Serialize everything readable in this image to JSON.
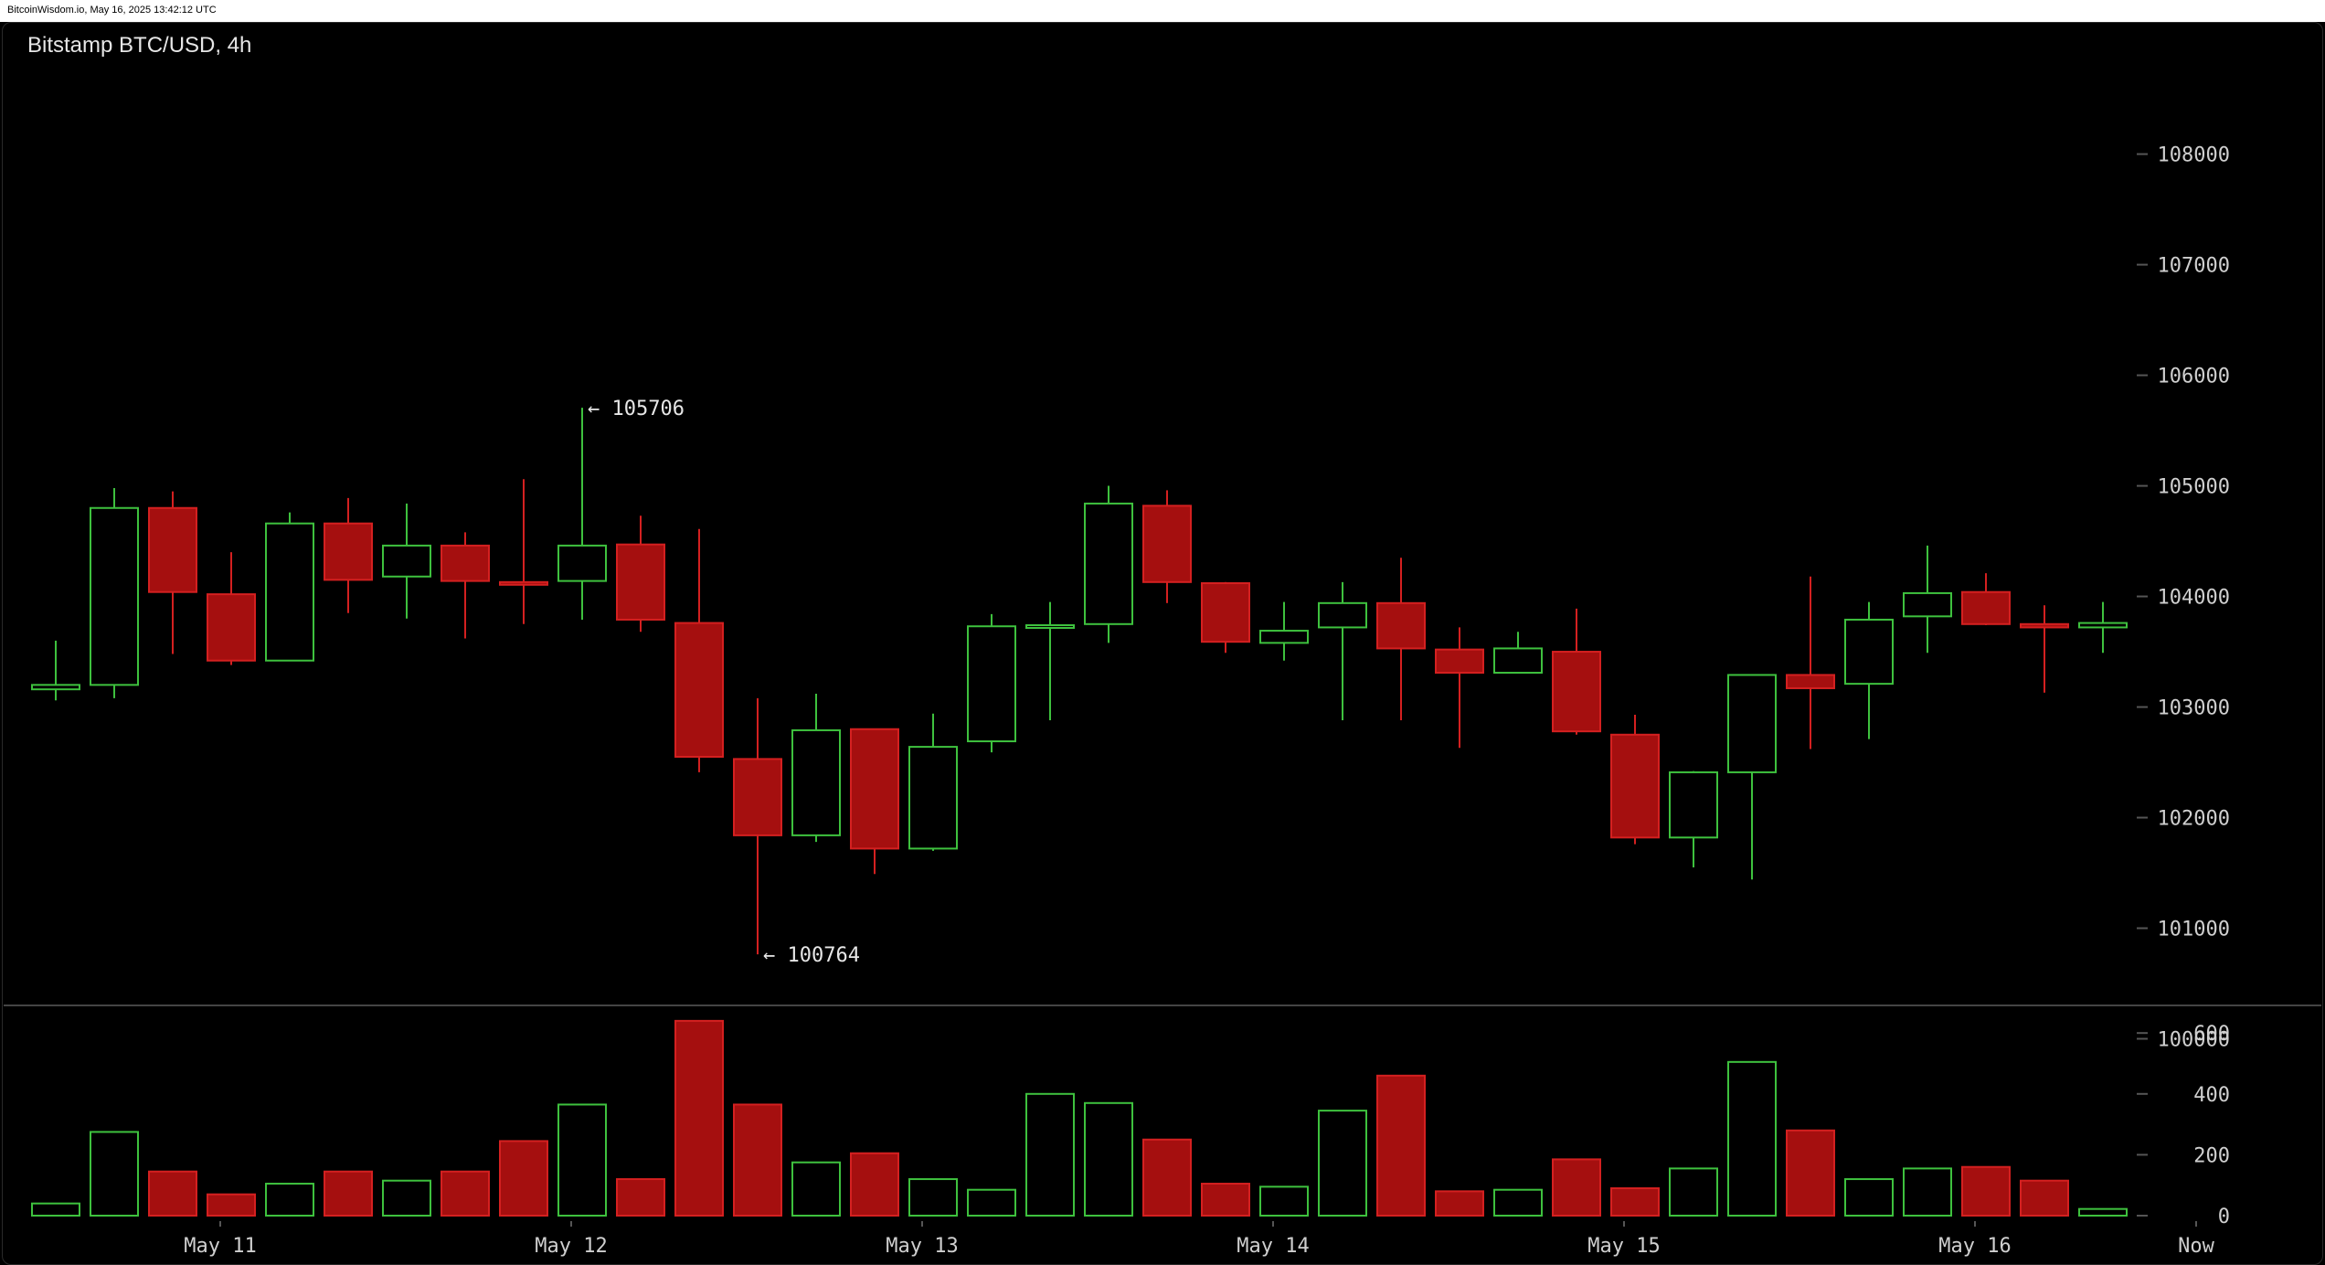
{
  "header": {
    "source_stamp": "BitcoinWisdom.io, May 16, 2025 13:42:12 UTC"
  },
  "chart_data": {
    "type": "candlestick",
    "title": "Bitstamp BTC/USD, 4h",
    "colors": {
      "up": "#3ec13e",
      "down": "#a50f0f",
      "down_edge": "#d42020",
      "axis_text": "#cfcfcf"
    },
    "price_axis": {
      "ylim": [
        99500,
        108600
      ],
      "ticks": [
        100000,
        101000,
        102000,
        103000,
        104000,
        105000,
        106000,
        107000,
        108000
      ]
    },
    "volume_axis": {
      "ylim": [
        0,
        650
      ],
      "ticks": [
        0,
        200,
        400,
        600
      ]
    },
    "x_labels": [
      {
        "label": "May 11",
        "index": 3
      },
      {
        "label": "May 12",
        "index": 9
      },
      {
        "label": "May 13",
        "index": 15
      },
      {
        "label": "May 14",
        "index": 21
      },
      {
        "label": "May 15",
        "index": 27
      },
      {
        "label": "May 16",
        "index": 33
      },
      {
        "label": "Now",
        "index": 37
      }
    ],
    "annotations": [
      {
        "text": "← 105706",
        "index": 9,
        "price": 105706
      },
      {
        "text": "← 100764",
        "index": 12,
        "price": 100764
      }
    ],
    "candles": [
      {
        "o": 103160,
        "h": 103600,
        "l": 103060,
        "c": 103200,
        "v": 40
      },
      {
        "o": 103200,
        "h": 104980,
        "l": 103080,
        "c": 104800,
        "v": 275
      },
      {
        "o": 104800,
        "h": 104950,
        "l": 103480,
        "c": 104040,
        "v": 145
      },
      {
        "o": 104020,
        "h": 104400,
        "l": 103380,
        "c": 103420,
        "v": 70
      },
      {
        "o": 103420,
        "h": 104760,
        "l": 103420,
        "c": 104660,
        "v": 105
      },
      {
        "o": 104660,
        "h": 104890,
        "l": 103850,
        "c": 104150,
        "v": 145
      },
      {
        "o": 104180,
        "h": 104840,
        "l": 103800,
        "c": 104460,
        "v": 115
      },
      {
        "o": 104460,
        "h": 104580,
        "l": 103620,
        "c": 104140,
        "v": 145
      },
      {
        "o": 104130,
        "h": 105060,
        "l": 103750,
        "c": 104120,
        "v": 245
      },
      {
        "o": 104140,
        "h": 105706,
        "l": 103790,
        "c": 104460,
        "v": 365
      },
      {
        "o": 104470,
        "h": 104730,
        "l": 103680,
        "c": 103790,
        "v": 120
      },
      {
        "o": 103760,
        "h": 104610,
        "l": 102410,
        "c": 102550,
        "v": 640
      },
      {
        "o": 102530,
        "h": 103080,
        "l": 100764,
        "c": 101840,
        "v": 365
      },
      {
        "o": 101840,
        "h": 103120,
        "l": 101780,
        "c": 102790,
        "v": 175
      },
      {
        "o": 102800,
        "h": 102800,
        "l": 101490,
        "c": 101720,
        "v": 205
      },
      {
        "o": 101720,
        "h": 102940,
        "l": 101700,
        "c": 102640,
        "v": 120
      },
      {
        "o": 102690,
        "h": 103840,
        "l": 102590,
        "c": 103730,
        "v": 85
      },
      {
        "o": 103730,
        "h": 103950,
        "l": 102880,
        "c": 103740,
        "v": 400
      },
      {
        "o": 103750,
        "h": 105000,
        "l": 103580,
        "c": 104840,
        "v": 370
      },
      {
        "o": 104820,
        "h": 104960,
        "l": 103940,
        "c": 104130,
        "v": 250
      },
      {
        "o": 104120,
        "h": 104130,
        "l": 103490,
        "c": 103590,
        "v": 105
      },
      {
        "o": 103580,
        "h": 103950,
        "l": 103420,
        "c": 103690,
        "v": 95
      },
      {
        "o": 103720,
        "h": 104130,
        "l": 102880,
        "c": 103940,
        "v": 345
      },
      {
        "o": 103940,
        "h": 104350,
        "l": 102880,
        "c": 103530,
        "v": 460
      },
      {
        "o": 103520,
        "h": 103720,
        "l": 102630,
        "c": 103310,
        "v": 80
      },
      {
        "o": 103310,
        "h": 103680,
        "l": 103310,
        "c": 103530,
        "v": 85
      },
      {
        "o": 103500,
        "h": 103890,
        "l": 102750,
        "c": 102780,
        "v": 185
      },
      {
        "o": 102750,
        "h": 102930,
        "l": 101760,
        "c": 101820,
        "v": 90
      },
      {
        "o": 101820,
        "h": 102420,
        "l": 101550,
        "c": 102410,
        "v": 155
      },
      {
        "o": 102410,
        "h": 103290,
        "l": 101440,
        "c": 103290,
        "v": 505
      },
      {
        "o": 103290,
        "h": 104180,
        "l": 102620,
        "c": 103170,
        "v": 280
      },
      {
        "o": 103210,
        "h": 103950,
        "l": 102710,
        "c": 103790,
        "v": 120
      },
      {
        "o": 103820,
        "h": 104460,
        "l": 103490,
        "c": 104030,
        "v": 155
      },
      {
        "o": 104040,
        "h": 104210,
        "l": 103740,
        "c": 103750,
        "v": 160
      },
      {
        "o": 103750,
        "h": 103920,
        "l": 103130,
        "c": 103720,
        "v": 115
      },
      {
        "o": 103720,
        "h": 103950,
        "l": 103490,
        "c": 103760,
        "v": 22
      }
    ]
  }
}
